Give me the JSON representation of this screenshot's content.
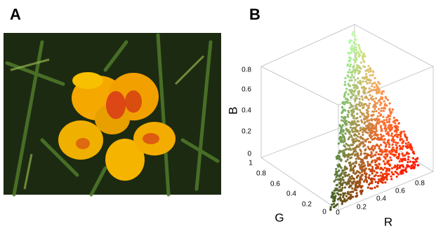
{
  "panels": {
    "a": {
      "label": "A"
    },
    "b": {
      "label": "B",
      "axes": {
        "b": {
          "label": "B",
          "ticks": [
            0,
            0.2,
            0.4,
            0.6,
            0.8
          ]
        },
        "g": {
          "label": "G",
          "ticks": [
            0,
            0.2,
            0.4,
            0.6,
            0.8,
            1
          ]
        },
        "r": {
          "label": "R",
          "ticks": [
            0,
            0.2,
            0.4,
            0.6,
            0.8
          ]
        }
      }
    }
  }
}
